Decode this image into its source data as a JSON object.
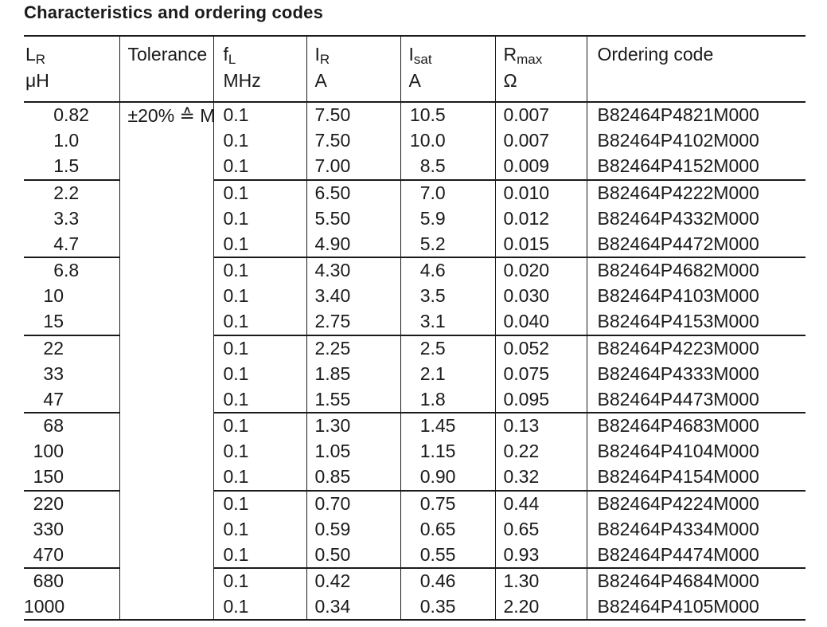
{
  "title": "Characteristics and ordering codes",
  "table": {
    "columns": [
      {
        "symbol": "L",
        "sub": "R",
        "unit": "μH"
      },
      {
        "symbol": "Tolerance",
        "sub": "",
        "unit": ""
      },
      {
        "symbol": "f",
        "sub": "L",
        "unit": "MHz"
      },
      {
        "symbol": "I",
        "sub": "R",
        "unit": "A"
      },
      {
        "symbol": "I",
        "sub": "sat",
        "unit": "A"
      },
      {
        "symbol": "R",
        "sub": "max",
        "unit": "Ω"
      },
      {
        "symbol": "Ordering code",
        "sub": "",
        "unit": ""
      }
    ],
    "tolerance": "±20% ≙ M",
    "groups": [
      {
        "rows": [
          [
            "0.82",
            "0.1",
            "7.50",
            "10.5",
            "0.007",
            "B82464P4821M000"
          ],
          [
            "1.0",
            "0.1",
            "7.50",
            "10.0",
            "0.007",
            "B82464P4102M000"
          ],
          [
            "1.5",
            "0.1",
            "7.00",
            "8.5",
            "0.009",
            "B82464P4152M000"
          ]
        ]
      },
      {
        "rows": [
          [
            "2.2",
            "0.1",
            "6.50",
            "7.0",
            "0.010",
            "B82464P4222M000"
          ],
          [
            "3.3",
            "0.1",
            "5.50",
            "5.9",
            "0.012",
            "B82464P4332M000"
          ],
          [
            "4.7",
            "0.1",
            "4.90",
            "5.2",
            "0.015",
            "B82464P4472M000"
          ]
        ]
      },
      {
        "rows": [
          [
            "6.8",
            "0.1",
            "4.30",
            "4.6",
            "0.020",
            "B82464P4682M000"
          ],
          [
            "10",
            "0.1",
            "3.40",
            "3.5",
            "0.030",
            "B82464P4103M000"
          ],
          [
            "15",
            "0.1",
            "2.75",
            "3.1",
            "0.040",
            "B82464P4153M000"
          ]
        ]
      },
      {
        "rows": [
          [
            "22",
            "0.1",
            "2.25",
            "2.5",
            "0.052",
            "B82464P4223M000"
          ],
          [
            "33",
            "0.1",
            "1.85",
            "2.1",
            "0.075",
            "B82464P4333M000"
          ],
          [
            "47",
            "0.1",
            "1.55",
            "1.8",
            "0.095",
            "B82464P4473M000"
          ]
        ]
      },
      {
        "rows": [
          [
            "68",
            "0.1",
            "1.30",
            "1.45",
            "0.13",
            "B82464P4683M000"
          ],
          [
            "100",
            "0.1",
            "1.05",
            "1.15",
            "0.22",
            "B82464P4104M000"
          ],
          [
            "150",
            "0.1",
            "0.85",
            "0.90",
            "0.32",
            "B82464P4154M000"
          ]
        ]
      },
      {
        "rows": [
          [
            "220",
            "0.1",
            "0.70",
            "0.75",
            "0.44",
            "B82464P4224M000"
          ],
          [
            "330",
            "0.1",
            "0.59",
            "0.65",
            "0.65",
            "B82464P4334M000"
          ],
          [
            "470",
            "0.1",
            "0.50",
            "0.55",
            "0.93",
            "B82464P4474M000"
          ]
        ]
      },
      {
        "rows": [
          [
            "680",
            "0.1",
            "0.42",
            "0.46",
            "1.30",
            "B82464P4684M000"
          ],
          [
            "1000",
            "0.1",
            "0.34",
            "0.35",
            "2.20",
            "B82464P4105M000"
          ]
        ]
      }
    ]
  },
  "colors": {
    "text": "#1a1a1a",
    "rule": "#1a1a1a",
    "background": "#ffffff"
  }
}
